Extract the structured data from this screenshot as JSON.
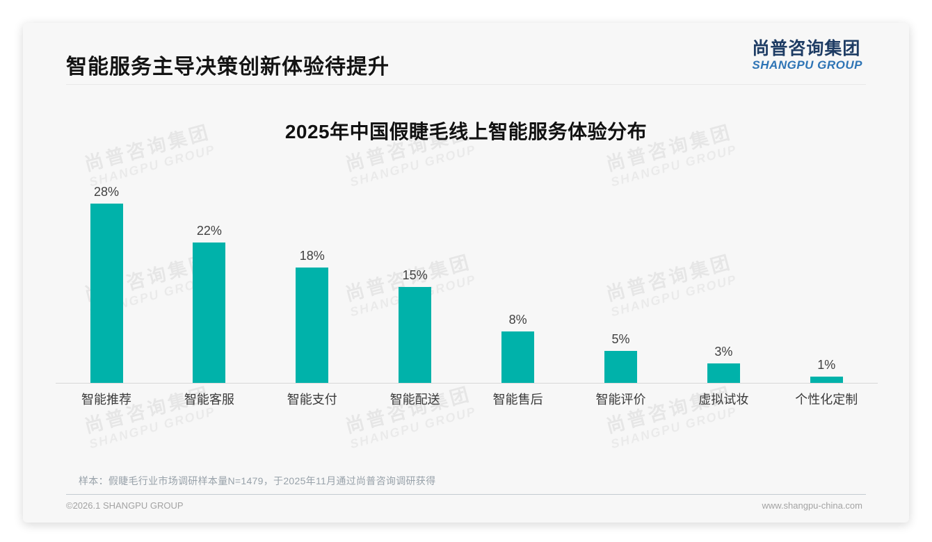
{
  "page": {
    "title": "智能服务主导决策创新体验待提升",
    "logo": {
      "cn": "尚普咨询集团",
      "en": "SHANGPU GROUP"
    },
    "watermark": {
      "cn": "尚普咨询集团",
      "en": "SHANGPU GROUP"
    },
    "note": "样本：假睫毛行业市场调研样本量N=1479，于2025年11月通过尚普咨询调研获得",
    "footer": {
      "left": "©2026.1 SHANGPU GROUP",
      "right": "www.shangpu-china.com"
    }
  },
  "chart_data": {
    "type": "bar",
    "title": "2025年中国假睫毛线上智能服务体验分布",
    "categories": [
      "智能推荐",
      "智能客服",
      "智能支付",
      "智能配送",
      "智能售后",
      "智能评价",
      "虚拟试妆",
      "个性化定制"
    ],
    "values": [
      28,
      22,
      18,
      15,
      8,
      5,
      3,
      1
    ],
    "unit": "%",
    "data_labels": true,
    "grid": false,
    "legend": "none",
    "ylim": [
      0,
      30
    ],
    "bar_color": "#00b2aa"
  },
  "colors": {
    "accent_teal": "#00b2aa",
    "logo_navy": "#1e3c64",
    "logo_blue": "#2e74b5",
    "card_bg": "#f7f7f7"
  }
}
